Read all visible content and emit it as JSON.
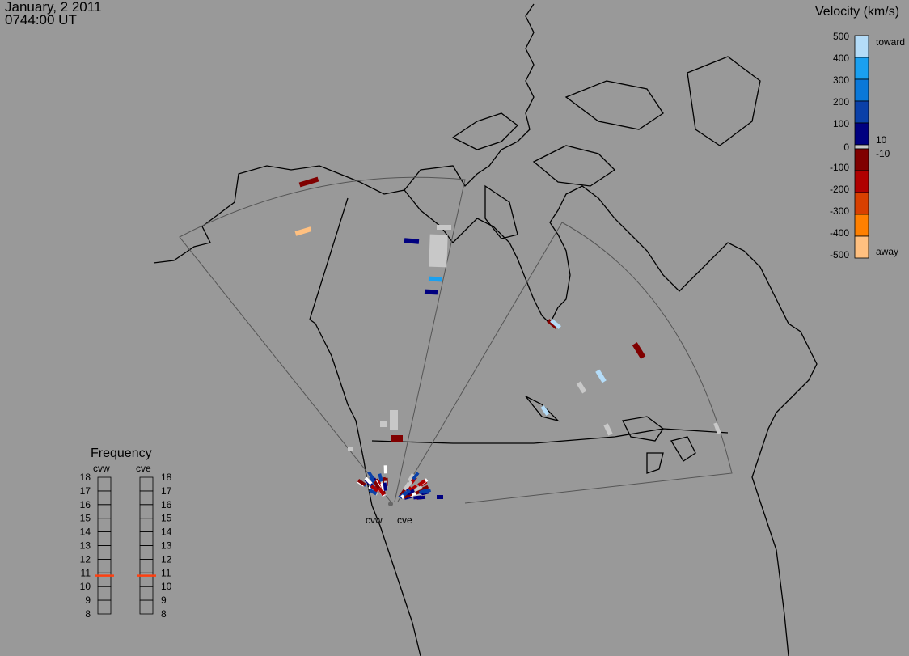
{
  "header": {
    "date": "January, 2 2011",
    "time": "0744:00 UT"
  },
  "velocity_legend": {
    "title": "Velocity (km/s)",
    "ticks": [
      "500",
      "400",
      "300",
      "200",
      "100",
      "0",
      "-100",
      "-200",
      "-300",
      "-400",
      "-500"
    ],
    "toward_label": "toward",
    "away_label": "away",
    "inner_pos_label": "10",
    "inner_neg_label": "-10",
    "bins": [
      {
        "range": "400 to 500",
        "color": "#b4dcf8"
      },
      {
        "range": "300 to 400",
        "color": "#1aa0f0"
      },
      {
        "range": "200 to 300",
        "color": "#0a78d8"
      },
      {
        "range": "100 to 200",
        "color": "#0a40a8"
      },
      {
        "range": "10 to 100",
        "color": "#000080"
      },
      {
        "range": "ground scatter",
        "color": "#c8c8c8"
      },
      {
        "range": "-10 to -100",
        "color": "#800000"
      },
      {
        "range": "-100 to -200",
        "color": "#b00000"
      },
      {
        "range": "-200 to -300",
        "color": "#d84000"
      },
      {
        "range": "-300 to -400",
        "color": "#ff8000"
      },
      {
        "range": "-400 to -500",
        "color": "#ffc080"
      }
    ]
  },
  "frequency_panel": {
    "title": "Frequency",
    "scale_ticks": [
      "18",
      "17",
      "16",
      "15",
      "14",
      "13",
      "12",
      "11",
      "10",
      "9",
      "8"
    ],
    "radars": [
      {
        "name": "cvw",
        "frequency_mhz": 10.8
      },
      {
        "name": "cve",
        "frequency_mhz": 10.8
      }
    ],
    "marker_color": "#ff4010"
  },
  "radar_labels": {
    "west": "cvw",
    "east": "cve"
  },
  "echo_velocities_km_s": [
    -50,
    -450,
    50,
    0,
    -150,
    350,
    50,
    0,
    -50,
    450,
    0,
    0,
    -50,
    0,
    0,
    450,
    450,
    0,
    -50,
    0,
    50
  ]
}
